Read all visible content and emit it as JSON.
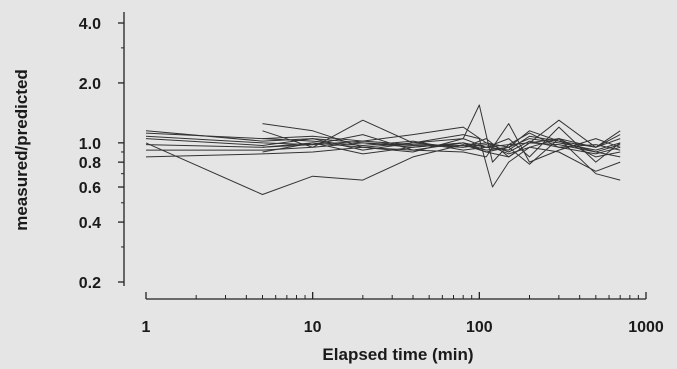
{
  "chart_data": {
    "type": "line",
    "xlabel": "Elapsed time (min)",
    "ylabel": "measured/predicted",
    "x_scale": "log",
    "y_scale": "log",
    "xlim": [
      1,
      1000
    ],
    "ylim": [
      0.2,
      4.0
    ],
    "x_ticks": [
      1,
      10,
      100,
      1000
    ],
    "x_tick_labels": [
      "1",
      "10",
      "100",
      "1000"
    ],
    "y_ticks": [
      0.2,
      0.4,
      0.6,
      0.8,
      1.0,
      2.0,
      4.0
    ],
    "y_tick_labels": [
      "0.2",
      "0.4",
      "0.6",
      "0.8",
      "1.0",
      "2.0",
      "4.0"
    ],
    "grid": false,
    "line_color": "#333333",
    "series": [
      {
        "x": [
          1,
          5,
          10,
          20,
          40,
          80,
          110,
          150,
          200,
          300,
          500,
          700
        ],
        "y": [
          1.15,
          1.02,
          1.05,
          1.0,
          0.95,
          1.0,
          0.92,
          0.95,
          1.05,
          1.0,
          0.92,
          1.0
        ]
      },
      {
        "x": [
          1,
          5,
          10,
          20,
          40,
          80,
          110,
          150,
          200,
          300,
          500,
          700
        ],
        "y": [
          1.08,
          1.0,
          0.98,
          1.02,
          0.98,
          0.97,
          1.0,
          0.9,
          1.02,
          0.95,
          0.88,
          0.95
        ]
      },
      {
        "x": [
          1,
          5,
          10,
          20,
          40,
          80,
          110,
          150,
          200,
          300,
          500,
          700
        ],
        "y": [
          1.05,
          0.97,
          1.05,
          0.92,
          1.0,
          1.05,
          0.95,
          0.92,
          1.08,
          1.02,
          0.95,
          1.05
        ]
      },
      {
        "x": [
          1,
          5,
          10,
          20,
          40,
          80,
          110,
          150,
          200,
          300,
          500,
          700
        ],
        "y": [
          0.98,
          0.95,
          1.0,
          0.95,
          0.92,
          1.0,
          0.9,
          0.85,
          1.0,
          0.98,
          0.9,
          0.98
        ]
      },
      {
        "x": [
          1,
          5,
          10,
          20,
          40,
          80,
          110,
          150,
          200,
          300,
          500,
          700
        ],
        "y": [
          0.92,
          0.92,
          0.95,
          1.0,
          0.97,
          0.95,
          0.98,
          0.88,
          0.95,
          1.05,
          0.85,
          0.9
        ]
      },
      {
        "x": [
          1,
          5,
          10,
          20,
          40,
          80,
          110,
          150,
          200,
          300,
          500,
          700
        ],
        "y": [
          1.12,
          1.05,
          1.02,
          0.97,
          1.02,
          0.92,
          0.95,
          0.98,
          1.12,
          0.95,
          0.98,
          0.92
        ]
      },
      {
        "x": [
          1,
          5,
          10,
          20,
          40,
          80,
          100,
          120,
          150,
          200,
          300,
          500,
          700
        ],
        "y": [
          0.85,
          0.88,
          0.9,
          0.95,
          1.0,
          1.1,
          1.05,
          0.6,
          0.8,
          0.95,
          0.9,
          0.72,
          0.8
        ]
      },
      {
        "x": [
          5,
          10,
          20,
          40,
          80,
          100,
          120,
          150,
          200,
          300,
          500,
          700
        ],
        "y": [
          1.25,
          1.15,
          0.95,
          0.9,
          1.05,
          1.55,
          0.8,
          0.98,
          1.0,
          1.05,
          0.95,
          1.1
        ]
      },
      {
        "x": [
          5,
          10,
          20,
          40,
          80,
          110,
          150,
          200,
          300,
          500,
          700
        ],
        "y": [
          1.15,
          0.95,
          1.3,
          1.0,
          0.95,
          1.05,
          0.85,
          1.0,
          1.3,
          0.95,
          1.15
        ]
      },
      {
        "x": [
          5,
          10,
          20,
          40,
          80,
          110,
          150,
          200,
          300,
          500,
          700
        ],
        "y": [
          0.95,
          0.98,
          1.1,
          0.92,
          0.9,
          0.85,
          1.25,
          0.8,
          0.92,
          1.05,
          0.95
        ]
      },
      {
        "x": [
          1,
          5,
          10,
          20,
          40,
          80,
          110,
          150,
          200,
          300,
          500,
          700
        ],
        "y": [
          1.0,
          0.55,
          0.68,
          0.65,
          0.85,
          0.98,
          0.9,
          0.95,
          0.78,
          1.05,
          0.7,
          0.65
        ]
      },
      {
        "x": [
          5,
          10,
          20,
          40,
          80,
          110,
          150,
          200,
          300,
          500,
          700
        ],
        "y": [
          1.05,
          1.08,
          1.02,
          1.1,
          1.2,
          1.0,
          0.95,
          1.15,
          1.02,
          0.9,
          0.85
        ]
      },
      {
        "x": [
          5,
          10,
          20,
          40,
          80,
          110,
          150,
          200,
          300,
          500,
          700
        ],
        "y": [
          0.9,
          1.0,
          0.88,
          0.95,
          1.0,
          0.95,
          1.05,
          0.85,
          1.2,
          0.8,
          1.0
        ]
      }
    ]
  }
}
